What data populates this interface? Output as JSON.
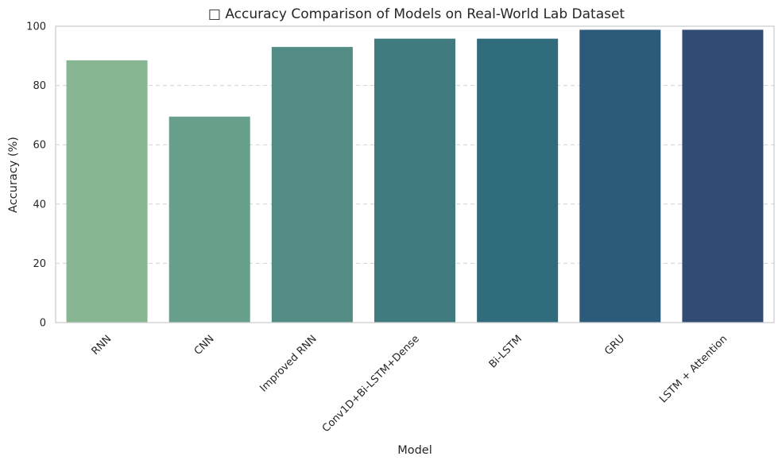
{
  "chart_data": {
    "type": "bar",
    "title": "□ Accuracy Comparison of Models on Real-World Lab Dataset",
    "xlabel": "Model",
    "ylabel": "Accuracy (%)",
    "categories": [
      "RNN",
      "CNN",
      "Improved RNN",
      "Conv1D+Bi-LSTM+Dense",
      "Bi-LSTM",
      "GRU",
      "LSTM + Attention"
    ],
    "values": [
      88.5,
      69.5,
      93.0,
      95.8,
      95.8,
      98.8,
      98.8
    ],
    "ylim": [
      0,
      100
    ],
    "yticks": [
      0,
      20,
      40,
      60,
      80,
      100
    ],
    "grid": "y-dashed",
    "colors": [
      "#88b592",
      "#68a08b",
      "#528c85",
      "#407b80",
      "#316c7d",
      "#2c5a7a",
      "#324b74"
    ]
  }
}
